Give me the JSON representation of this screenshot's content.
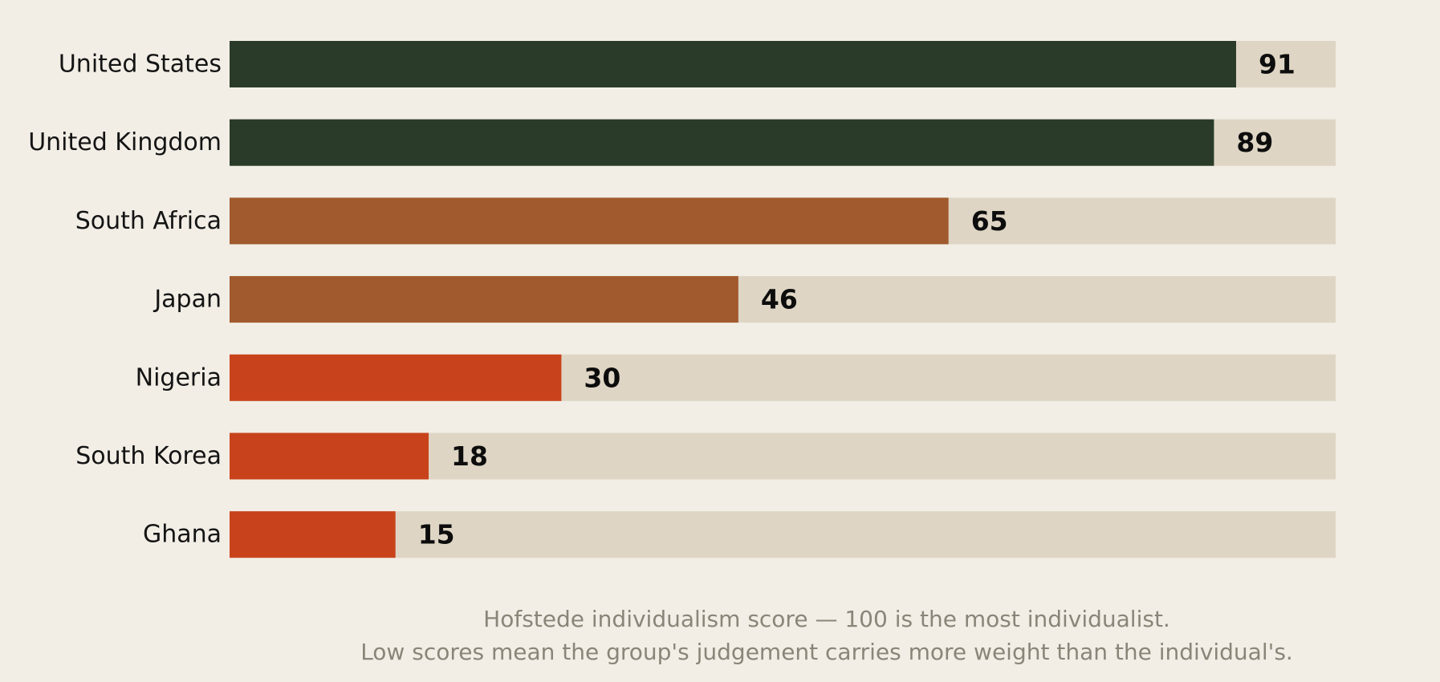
{
  "chart_data": {
    "type": "bar",
    "orientation": "horizontal",
    "categories": [
      "United States",
      "United Kingdom",
      "South Africa",
      "Japan",
      "Nigeria",
      "South Korea",
      "Ghana"
    ],
    "values": [
      91,
      89,
      65,
      46,
      30,
      18,
      15
    ],
    "bar_colors": [
      "#2a3c29",
      "#2a3c29",
      "#a15a2e",
      "#a15a2e",
      "#c8431b",
      "#c8431b",
      "#c8431b"
    ],
    "track_color": "#ded5c4",
    "xlim": [
      0,
      100
    ],
    "grid": false,
    "title": "",
    "xlabel": "",
    "ylabel": "",
    "caption_lines": [
      "Hofstede individualism score — 100 is the most individualist.",
      "Low scores mean the group's judgement carries more weight than the individual's."
    ]
  }
}
